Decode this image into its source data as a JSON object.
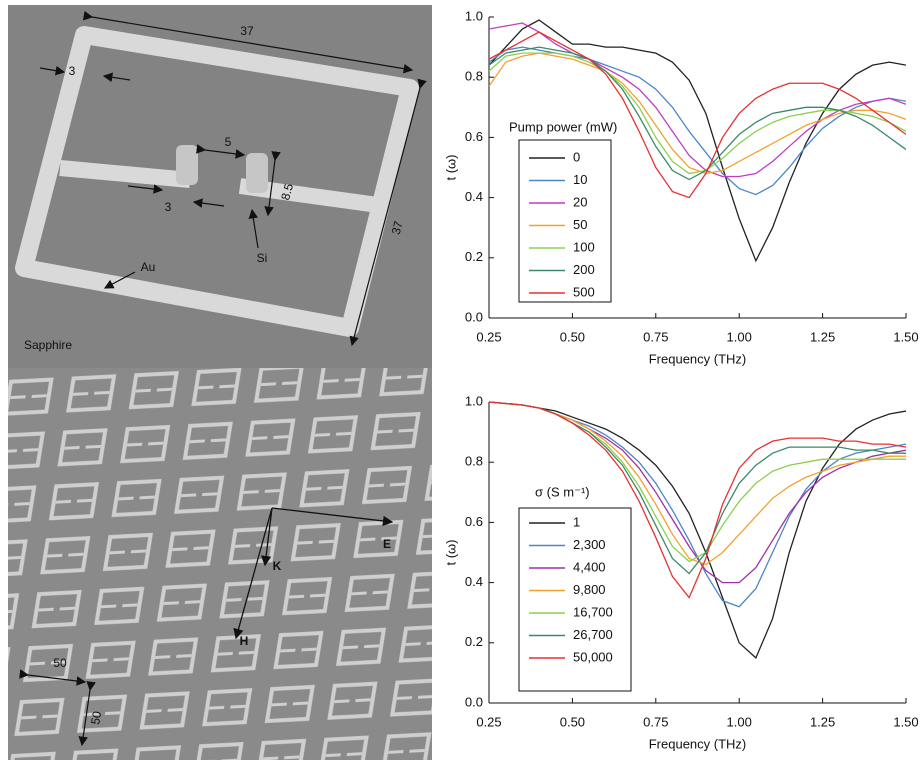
{
  "chart_data": [
    {
      "type": "line",
      "x_label": "Frequency (THz)",
      "y_label": "t (ω)",
      "legend_title": "Pump power (mW)",
      "x": [
        0.25,
        0.3,
        0.35,
        0.4,
        0.45,
        0.5,
        0.55,
        0.6,
        0.65,
        0.7,
        0.75,
        0.8,
        0.85,
        0.9,
        0.95,
        1.0,
        1.05,
        1.1,
        1.15,
        1.2,
        1.25,
        1.3,
        1.35,
        1.4,
        1.45,
        1.5
      ],
      "xlim": [
        0.25,
        1.5
      ],
      "ylim": [
        0,
        1
      ],
      "xticks": [
        0.25,
        {
          "value": 0.5,
          "label": "0.50"
        },
        0.75,
        {
          "value": 1,
          "label": "1.00"
        },
        1.25,
        {
          "value": 1.5,
          "label": "1.50"
        }
      ],
      "yticks": [
        {
          "value": 0,
          "label": "0.0"
        },
        0.2,
        0.4,
        0.6,
        0.8,
        {
          "value": 1,
          "label": "1.0"
        }
      ],
      "series": [
        {
          "name": "0",
          "color": "#222222",
          "values": [
            0.84,
            0.9,
            0.96,
            0.99,
            0.95,
            0.91,
            0.91,
            0.9,
            0.9,
            0.89,
            0.88,
            0.85,
            0.79,
            0.68,
            0.5,
            0.33,
            0.19,
            0.3,
            0.45,
            0.58,
            0.68,
            0.76,
            0.81,
            0.84,
            0.85,
            0.84
          ]
        },
        {
          "name": "10",
          "color": "#4a86c8",
          "values": [
            0.85,
            0.89,
            0.9,
            0.89,
            0.88,
            0.87,
            0.86,
            0.84,
            0.82,
            0.8,
            0.76,
            0.7,
            0.62,
            0.55,
            0.48,
            0.43,
            0.41,
            0.44,
            0.5,
            0.57,
            0.63,
            0.67,
            0.7,
            0.72,
            0.73,
            0.72
          ]
        },
        {
          "name": "20",
          "color": "#c03cc0",
          "values": [
            0.96,
            0.97,
            0.98,
            0.95,
            0.91,
            0.88,
            0.86,
            0.83,
            0.8,
            0.76,
            0.7,
            0.62,
            0.54,
            0.49,
            0.47,
            0.47,
            0.48,
            0.52,
            0.57,
            0.62,
            0.66,
            0.69,
            0.71,
            0.72,
            0.73,
            0.71
          ]
        },
        {
          "name": "50",
          "color": "#f5a030",
          "values": [
            0.77,
            0.85,
            0.87,
            0.88,
            0.87,
            0.86,
            0.84,
            0.82,
            0.78,
            0.72,
            0.64,
            0.56,
            0.5,
            0.48,
            0.49,
            0.52,
            0.55,
            0.58,
            0.61,
            0.64,
            0.66,
            0.68,
            0.69,
            0.69,
            0.68,
            0.66
          ]
        },
        {
          "name": "100",
          "color": "#8cd050",
          "values": [
            0.82,
            0.87,
            0.88,
            0.88,
            0.88,
            0.87,
            0.85,
            0.82,
            0.77,
            0.7,
            0.6,
            0.52,
            0.48,
            0.49,
            0.53,
            0.58,
            0.62,
            0.65,
            0.67,
            0.68,
            0.69,
            0.69,
            0.68,
            0.67,
            0.65,
            0.62
          ]
        },
        {
          "name": "200",
          "color": "#3a8a6a",
          "values": [
            0.84,
            0.88,
            0.89,
            0.9,
            0.89,
            0.88,
            0.86,
            0.82,
            0.76,
            0.67,
            0.57,
            0.49,
            0.46,
            0.49,
            0.55,
            0.61,
            0.65,
            0.68,
            0.69,
            0.7,
            0.7,
            0.69,
            0.67,
            0.64,
            0.6,
            0.56
          ]
        },
        {
          "name": "500",
          "color": "#e83030",
          "values": [
            0.86,
            0.89,
            0.92,
            0.95,
            0.92,
            0.89,
            0.86,
            0.81,
            0.73,
            0.62,
            0.5,
            0.42,
            0.4,
            0.48,
            0.6,
            0.68,
            0.73,
            0.76,
            0.78,
            0.78,
            0.78,
            0.76,
            0.73,
            0.69,
            0.65,
            0.61
          ]
        }
      ]
    },
    {
      "type": "line",
      "x_label": "Frequency (THz)",
      "y_label": "t (ω)",
      "legend_title": "σ (S m⁻¹)",
      "x": [
        0.25,
        0.3,
        0.35,
        0.4,
        0.45,
        0.5,
        0.55,
        0.6,
        0.65,
        0.7,
        0.75,
        0.8,
        0.85,
        0.9,
        0.95,
        1.0,
        1.05,
        1.1,
        1.15,
        1.2,
        1.25,
        1.3,
        1.35,
        1.4,
        1.45,
        1.5
      ],
      "xlim": [
        0.25,
        1.5
      ],
      "ylim": [
        0,
        1
      ],
      "xticks": [
        0.25,
        {
          "value": 0.5,
          "label": "0.50"
        },
        0.75,
        {
          "value": 1,
          "label": "1.00"
        },
        1.25,
        {
          "value": 1.5,
          "label": "1.50"
        }
      ],
      "yticks": [
        {
          "value": 0,
          "label": "0.0"
        },
        0.2,
        0.4,
        0.6,
        0.8,
        {
          "value": 1,
          "label": "1.0"
        }
      ],
      "series": [
        {
          "name": "1",
          "color": "#222222",
          "values": [
            1.0,
            0.995,
            0.99,
            0.98,
            0.97,
            0.95,
            0.93,
            0.91,
            0.88,
            0.84,
            0.79,
            0.72,
            0.63,
            0.5,
            0.35,
            0.2,
            0.15,
            0.28,
            0.5,
            0.67,
            0.78,
            0.86,
            0.91,
            0.94,
            0.96,
            0.97
          ]
        },
        {
          "name": "2,300",
          "color": "#4a86c8",
          "values": [
            1.0,
            0.995,
            0.99,
            0.98,
            0.96,
            0.94,
            0.92,
            0.89,
            0.85,
            0.8,
            0.73,
            0.64,
            0.54,
            0.43,
            0.34,
            0.32,
            0.38,
            0.5,
            0.62,
            0.71,
            0.77,
            0.81,
            0.83,
            0.84,
            0.85,
            0.86
          ]
        },
        {
          "name": "4,400",
          "color": "#a030a8",
          "values": [
            1.0,
            0.995,
            0.99,
            0.98,
            0.96,
            0.94,
            0.91,
            0.88,
            0.84,
            0.78,
            0.7,
            0.61,
            0.52,
            0.44,
            0.4,
            0.4,
            0.45,
            0.54,
            0.63,
            0.7,
            0.75,
            0.78,
            0.8,
            0.82,
            0.83,
            0.84
          ]
        },
        {
          "name": "9,800",
          "color": "#f5a030",
          "values": [
            1.0,
            0.995,
            0.99,
            0.98,
            0.96,
            0.94,
            0.91,
            0.87,
            0.82,
            0.75,
            0.66,
            0.56,
            0.48,
            0.46,
            0.5,
            0.56,
            0.62,
            0.68,
            0.72,
            0.75,
            0.77,
            0.79,
            0.8,
            0.81,
            0.82,
            0.82
          ]
        },
        {
          "name": "16,700",
          "color": "#8cd050",
          "values": [
            1.0,
            0.995,
            0.99,
            0.98,
            0.96,
            0.93,
            0.9,
            0.86,
            0.8,
            0.72,
            0.62,
            0.52,
            0.47,
            0.5,
            0.59,
            0.67,
            0.73,
            0.77,
            0.79,
            0.8,
            0.81,
            0.81,
            0.81,
            0.81,
            0.81,
            0.81
          ]
        },
        {
          "name": "26,700",
          "color": "#3a8a6a",
          "values": [
            1.0,
            0.995,
            0.99,
            0.98,
            0.96,
            0.93,
            0.9,
            0.85,
            0.79,
            0.7,
            0.59,
            0.48,
            0.43,
            0.5,
            0.63,
            0.73,
            0.79,
            0.83,
            0.85,
            0.85,
            0.85,
            0.85,
            0.84,
            0.84,
            0.83,
            0.83
          ]
        },
        {
          "name": "50,000",
          "color": "#e83030",
          "values": [
            1.0,
            0.995,
            0.99,
            0.98,
            0.96,
            0.93,
            0.89,
            0.84,
            0.77,
            0.67,
            0.55,
            0.42,
            0.35,
            0.48,
            0.66,
            0.78,
            0.84,
            0.87,
            0.88,
            0.88,
            0.88,
            0.87,
            0.87,
            0.86,
            0.86,
            0.85
          ]
        }
      ]
    }
  ],
  "images": [
    {
      "labels": [
        "37",
        "3",
        "5",
        "8.5",
        "3",
        "37",
        "Au",
        "Si",
        "Sapphire"
      ]
    },
    {
      "labels": [
        "E",
        "K",
        "H",
        "50",
        "50"
      ]
    }
  ]
}
